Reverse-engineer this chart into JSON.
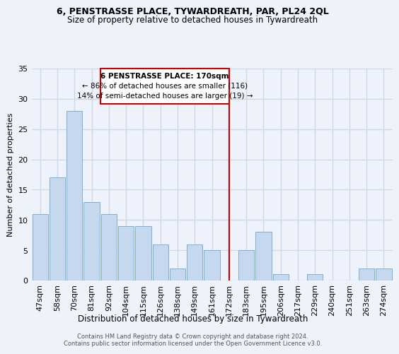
{
  "title": "6, PENSTRASSE PLACE, TYWARDREATH, PAR, PL24 2QL",
  "subtitle": "Size of property relative to detached houses in Tywardreath",
  "xlabel": "Distribution of detached houses by size in Tywardreath",
  "ylabel": "Number of detached properties",
  "bar_labels": [
    "47sqm",
    "58sqm",
    "70sqm",
    "81sqm",
    "92sqm",
    "104sqm",
    "115sqm",
    "126sqm",
    "138sqm",
    "149sqm",
    "161sqm",
    "172sqm",
    "183sqm",
    "195sqm",
    "206sqm",
    "217sqm",
    "229sqm",
    "240sqm",
    "251sqm",
    "263sqm",
    "274sqm"
  ],
  "bar_values": [
    11,
    17,
    28,
    13,
    11,
    9,
    9,
    6,
    2,
    6,
    5,
    0,
    5,
    8,
    1,
    0,
    1,
    0,
    0,
    2,
    2
  ],
  "bar_color": "#c5d8ed",
  "bar_edge_color": "#7aafd4",
  "background_color": "#edf2fb",
  "grid_color": "#d0d8e8",
  "vline_index": 11,
  "annotation_line1": "6 PENSTRASSE PLACE: 170sqm",
  "annotation_line2": "← 86% of detached houses are smaller (116)",
  "annotation_line3": "14% of semi-detached houses are larger (19) →",
  "annotation_box_color": "#cc0000",
  "vline_color": "#cc0000",
  "ylim": [
    0,
    35
  ],
  "yticks": [
    0,
    5,
    10,
    15,
    20,
    25,
    30,
    35
  ],
  "footer1": "Contains HM Land Registry data © Crown copyright and database right 2024.",
  "footer2": "Contains public sector information licensed under the Open Government Licence v3.0."
}
